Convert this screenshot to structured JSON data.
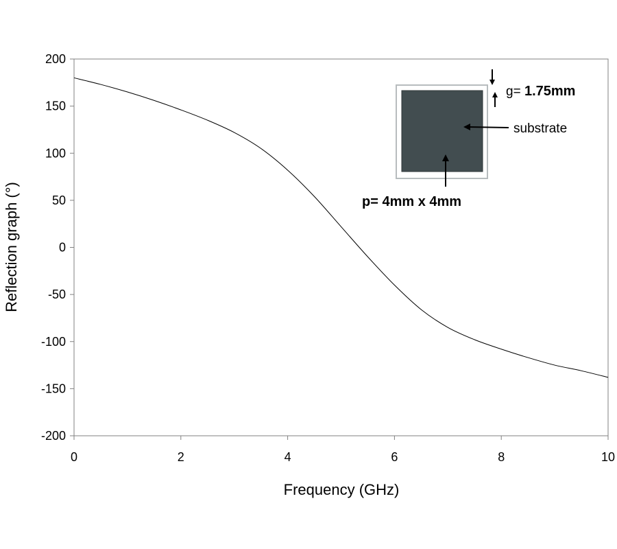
{
  "chart_data": {
    "type": "line",
    "title": "",
    "xlabel": "Frequency (GHz)",
    "ylabel": "Reflection graph (°)",
    "xlim": [
      0,
      10
    ],
    "ylim": [
      -200,
      200
    ],
    "x_ticks": [
      "0",
      "2",
      "4",
      "6",
      "8",
      "10"
    ],
    "y_ticks": [
      "200",
      "150",
      "100",
      "50",
      "0",
      "-50",
      "-100",
      "-150",
      "-200"
    ],
    "grid": false,
    "legend": "none",
    "series": [
      {
        "color": "#000000",
        "x": [
          0,
          0.5,
          1,
          1.5,
          2,
          2.5,
          3,
          3.5,
          4,
          4.5,
          5,
          5.5,
          6,
          6.5,
          7,
          7.5,
          8,
          8.5,
          9,
          9.5,
          10
        ],
        "y": [
          180,
          173,
          165,
          156,
          146,
          135,
          122,
          105,
          82,
          54,
          22,
          -10,
          -40,
          -66,
          -85,
          -98,
          -108,
          -117,
          -125,
          -131,
          -138
        ]
      }
    ]
  },
  "inset": {
    "gap_label_prefix": "g= ",
    "gap_label_value": "1.75mm",
    "substrate_label": "substrate",
    "period_label": "p=  4mm x 4mm",
    "substrate_color": "#424d50",
    "frame_color": "#b7bcbe"
  }
}
